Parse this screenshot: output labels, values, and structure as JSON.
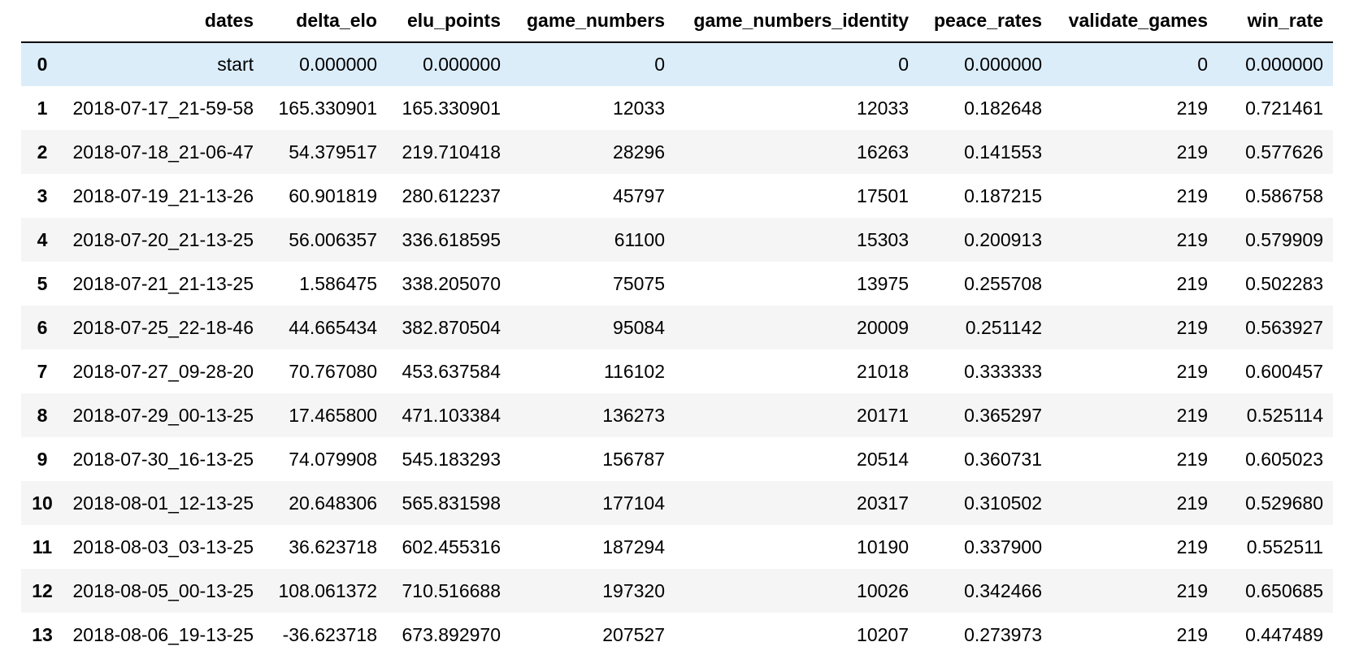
{
  "table": {
    "columns": [
      "dates",
      "delta_elo",
      "elu_points",
      "game_numbers",
      "game_numbers_identity",
      "peace_rates",
      "validate_games",
      "win_rate"
    ],
    "rows": [
      {
        "index": "0",
        "cells": [
          "start",
          "0.000000",
          "0.000000",
          "0",
          "0",
          "0.000000",
          "0",
          "0.000000"
        ]
      },
      {
        "index": "1",
        "cells": [
          "2018-07-17_21-59-58",
          "165.330901",
          "165.330901",
          "12033",
          "12033",
          "0.182648",
          "219",
          "0.721461"
        ]
      },
      {
        "index": "2",
        "cells": [
          "2018-07-18_21-06-47",
          "54.379517",
          "219.710418",
          "28296",
          "16263",
          "0.141553",
          "219",
          "0.577626"
        ]
      },
      {
        "index": "3",
        "cells": [
          "2018-07-19_21-13-26",
          "60.901819",
          "280.612237",
          "45797",
          "17501",
          "0.187215",
          "219",
          "0.586758"
        ]
      },
      {
        "index": "4",
        "cells": [
          "2018-07-20_21-13-25",
          "56.006357",
          "336.618595",
          "61100",
          "15303",
          "0.200913",
          "219",
          "0.579909"
        ]
      },
      {
        "index": "5",
        "cells": [
          "2018-07-21_21-13-25",
          "1.586475",
          "338.205070",
          "75075",
          "13975",
          "0.255708",
          "219",
          "0.502283"
        ]
      },
      {
        "index": "6",
        "cells": [
          "2018-07-25_22-18-46",
          "44.665434",
          "382.870504",
          "95084",
          "20009",
          "0.251142",
          "219",
          "0.563927"
        ]
      },
      {
        "index": "7",
        "cells": [
          "2018-07-27_09-28-20",
          "70.767080",
          "453.637584",
          "116102",
          "21018",
          "0.333333",
          "219",
          "0.600457"
        ]
      },
      {
        "index": "8",
        "cells": [
          "2018-07-29_00-13-25",
          "17.465800",
          "471.103384",
          "136273",
          "20171",
          "0.365297",
          "219",
          "0.525114"
        ]
      },
      {
        "index": "9",
        "cells": [
          "2018-07-30_16-13-25",
          "74.079908",
          "545.183293",
          "156787",
          "20514",
          "0.360731",
          "219",
          "0.605023"
        ]
      },
      {
        "index": "10",
        "cells": [
          "2018-08-01_12-13-25",
          "20.648306",
          "565.831598",
          "177104",
          "20317",
          "0.310502",
          "219",
          "0.529680"
        ]
      },
      {
        "index": "11",
        "cells": [
          "2018-08-03_03-13-25",
          "36.623718",
          "602.455316",
          "187294",
          "10190",
          "0.337900",
          "219",
          "0.552511"
        ]
      },
      {
        "index": "12",
        "cells": [
          "2018-08-05_00-13-25",
          "108.061372",
          "710.516688",
          "197320",
          "10026",
          "0.342466",
          "219",
          "0.650685"
        ]
      },
      {
        "index": "13",
        "cells": [
          "2018-08-06_19-13-25",
          "-36.623718",
          "673.892970",
          "207527",
          "10207",
          "0.273973",
          "219",
          "0.447489"
        ]
      }
    ],
    "highlighted_row": 0,
    "colors": {
      "header_border": "#000000",
      "row_stripe": "#f5f5f5",
      "row_highlight": "#dcedfa"
    }
  }
}
